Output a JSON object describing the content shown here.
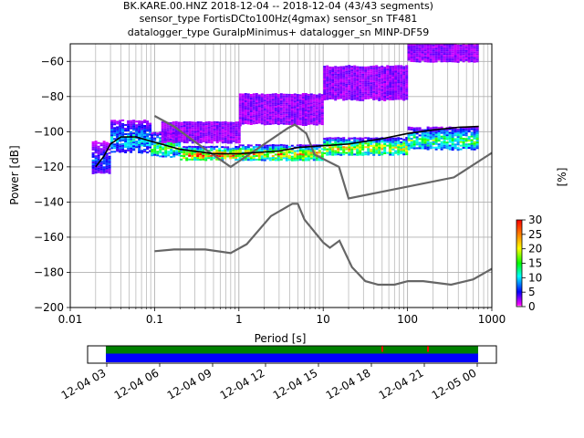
{
  "title_lines": [
    "BK.KARE.00.HNZ   2018-12-04 -- 2018-12-04  (43/43 segments)",
    "sensor_type FortisDCto100Hz(4gmax) sensor_sn TF481",
    "datalogger_type GuralpMinimus+ datalogger_sn MINP-DF59"
  ],
  "chart_data": {
    "type": "heatmap",
    "xlabel": "Period [s]",
    "ylabel": "Power [dB]",
    "xscale": "log",
    "xlim": [
      0.01,
      1000
    ],
    "ylim": [
      -200,
      -50
    ],
    "xticks": [
      0.01,
      0.1,
      1,
      10,
      100,
      1000
    ],
    "xtick_labels": [
      "0.01",
      "0.1",
      "1",
      "10",
      "100",
      "1000"
    ],
    "yticks": [
      -200,
      -180,
      -160,
      -140,
      -120,
      -100,
      -80,
      -60
    ],
    "ytick_labels": [
      "−200",
      "−180",
      "−160",
      "−140",
      "−120",
      "−100",
      "−80",
      "−60"
    ],
    "grid": true,
    "colorbar": {
      "label": "[%]",
      "range": [
        0,
        30
      ],
      "ticks": [
        0,
        5,
        10,
        15,
        20,
        25,
        30
      ],
      "tick_labels": [
        "0",
        "5",
        "10",
        "15",
        "20",
        "25",
        "30"
      ],
      "colors": [
        "#ffffff",
        "#ff00ff",
        "#0000ff",
        "#00ffff",
        "#00ff00",
        "#ffff00",
        "#ff0000"
      ]
    },
    "noise_models": [
      {
        "points": [
          [
            0.1,
            -91
          ],
          [
            0.17,
            -97
          ],
          [
            0.4,
            -110
          ],
          [
            0.8,
            -120
          ],
          [
            3.8,
            -98
          ],
          [
            4.6,
            -96
          ],
          [
            6.3,
            -101
          ],
          [
            7.9,
            -113
          ],
          [
            15.4,
            -120
          ],
          [
            20,
            -138
          ],
          [
            354.8,
            -126
          ],
          [
            1000,
            -112
          ]
        ]
      },
      {
        "points": [
          [
            0.1,
            -168
          ],
          [
            0.17,
            -167
          ],
          [
            0.4,
            -167
          ],
          [
            0.8,
            -169
          ],
          [
            1.24,
            -164
          ],
          [
            2.4,
            -148
          ],
          [
            4.3,
            -141
          ],
          [
            5,
            -141
          ],
          [
            6,
            -150
          ],
          [
            10,
            -163
          ],
          [
            12,
            -166
          ],
          [
            15.6,
            -162
          ],
          [
            21.9,
            -177
          ],
          [
            31.6,
            -185
          ],
          [
            45,
            -187
          ],
          [
            70,
            -187
          ],
          [
            101,
            -185
          ],
          [
            154,
            -185
          ],
          [
            328,
            -187
          ],
          [
            600,
            -184
          ],
          [
            1000,
            -178
          ]
        ]
      }
    ],
    "mean_curve": {
      "points": [
        [
          0.02,
          -120
        ],
        [
          0.025,
          -114
        ],
        [
          0.03,
          -107
        ],
        [
          0.04,
          -103
        ],
        [
          0.06,
          -103
        ],
        [
          0.1,
          -106
        ],
        [
          0.2,
          -110
        ],
        [
          0.5,
          -112.5
        ],
        [
          1,
          -112.5
        ],
        [
          3,
          -111
        ],
        [
          5,
          -109
        ],
        [
          10,
          -108
        ],
        [
          20,
          -107
        ],
        [
          50,
          -104
        ],
        [
          100,
          -101
        ],
        [
          200,
          -99
        ],
        [
          400,
          -97.5
        ],
        [
          700,
          -97
        ]
      ]
    },
    "psd_bands": [
      {
        "name": "main",
        "segments": [
          {
            "x": [
              0.018,
              0.03
            ],
            "yTop": -105,
            "yBot": -124,
            "prob": 6
          },
          {
            "x": [
              0.03,
              0.09
            ],
            "yTop": -93,
            "yBot": -112,
            "prob": 10
          },
          {
            "x": [
              0.09,
              0.2
            ],
            "yTop": -100,
            "yBot": -114,
            "prob": 15
          },
          {
            "x": [
              0.2,
              1
            ],
            "yTop": -108,
            "yBot": -116,
            "prob": 25
          },
          {
            "x": [
              1,
              10
            ],
            "yTop": -107,
            "yBot": -116,
            "prob": 22
          },
          {
            "x": [
              10,
              100
            ],
            "yTop": -103,
            "yBot": -113,
            "prob": 20
          },
          {
            "x": [
              100,
              650
            ],
            "yTop": -97,
            "yBot": -110,
            "prob": 14
          }
        ]
      },
      {
        "name": "upper",
        "segments": [
          {
            "x": [
              0.12,
              1
            ],
            "yTop": -94,
            "yBot": -106,
            "prob": 2
          },
          {
            "x": [
              1,
              10
            ],
            "yTop": -78,
            "yBot": -96,
            "prob": 2
          },
          {
            "x": [
              10,
              100
            ],
            "yTop": -62,
            "yBot": -82,
            "prob": 2
          },
          {
            "x": [
              100,
              650
            ],
            "yTop": -50,
            "yBot": -60,
            "prob": 2
          }
        ]
      }
    ],
    "timeline": {
      "tick_labels": [
        "12-04 03",
        "12-04 06",
        "12-04 09",
        "12-04 12",
        "12-04 15",
        "12-04 18",
        "12-04 21",
        "12-05 00"
      ],
      "data_color": "#0000ff",
      "coverage_color": "#008000",
      "gap_color": "#ff0000"
    }
  }
}
